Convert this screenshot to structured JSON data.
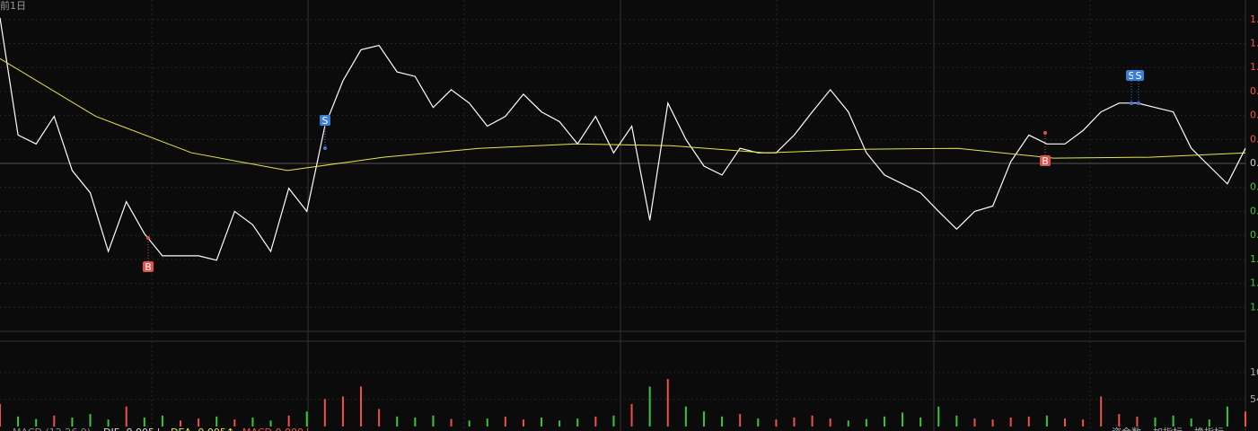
{
  "header": {
    "period": "前1日"
  },
  "chart_data": {
    "type": "line",
    "series": [
      {
        "name": "price",
        "color": "#ffffff",
        "values": [
          1.64,
          0.32,
          0.22,
          0.53,
          -0.08,
          -0.33,
          -0.99,
          -0.43,
          -0.79,
          -1.04,
          -1.04,
          -1.04,
          -1.09,
          -0.54,
          -0.69,
          -0.99,
          -0.28,
          -0.54,
          0.42,
          0.93,
          1.28,
          1.33,
          1.03,
          0.98,
          0.63,
          0.83,
          0.68,
          0.42,
          0.53,
          0.78,
          0.58,
          0.47,
          0.22,
          0.53,
          0.12,
          0.42,
          -0.64,
          0.68,
          0.27,
          -0.03,
          -0.13,
          0.17,
          0.12,
          0.12,
          0.32,
          0.58,
          0.83,
          0.58,
          0.12,
          -0.13,
          -0.23,
          -0.33,
          -0.54,
          -0.74,
          -0.54,
          -0.48,
          0.02,
          0.32,
          0.22,
          0.22,
          0.37,
          0.58,
          0.68,
          0.68,
          0.63,
          0.58,
          0.17,
          -0.03,
          -0.23,
          0.17
        ]
      },
      {
        "name": "average",
        "color": "#e6e64c",
        "values": [
          1.18,
          0.53,
          0.12,
          -0.08,
          0.07,
          0.17,
          0.22,
          0.2,
          0.12,
          0.16,
          0.17,
          0.06,
          0.07,
          0.12
        ]
      }
    ],
    "ylim": [
      -1.88,
      1.84
    ],
    "yticks": [
      {
        "value": 1.62,
        "label": "1."
      },
      {
        "value": 1.35,
        "label": "1."
      },
      {
        "value": 1.08,
        "label": "1."
      },
      {
        "value": 0.81,
        "label": "0."
      },
      {
        "value": 0.54,
        "label": "0."
      },
      {
        "value": 0.27,
        "label": "0."
      },
      {
        "value": 0,
        "label": "0."
      },
      {
        "value": -0.27,
        "label": "0."
      },
      {
        "value": -0.54,
        "label": "0."
      },
      {
        "value": -0.81,
        "label": "0."
      },
      {
        "value": -1.08,
        "label": "1."
      },
      {
        "value": -1.35,
        "label": "1."
      },
      {
        "value": -1.62,
        "label": "1."
      }
    ],
    "markers": [
      "B",
      "S",
      "B",
      "S",
      "S"
    ],
    "up_color": "#f0504a",
    "down_color": "#3cc43c",
    "volume": {
      "values": [
        45,
        20,
        15,
        22,
        18,
        25,
        14,
        40,
        18,
        22,
        12,
        16,
        20,
        14,
        18,
        12,
        22,
        30,
        55,
        60,
        80,
        35,
        20,
        18,
        22,
        15,
        12,
        16,
        20,
        14,
        18,
        12,
        16,
        20,
        22,
        45,
        80,
        95,
        40,
        30,
        20,
        25,
        16,
        14,
        18,
        22,
        16,
        12,
        15,
        20,
        28,
        18,
        40,
        22,
        16,
        14,
        18,
        20,
        22,
        16,
        14,
        60,
        25,
        20,
        18,
        22,
        16,
        14,
        40,
        30
      ],
      "ylim": [
        0,
        167
      ],
      "yticks": [
        {
          "value": 108,
          "label": "10"
        },
        54
      ]
    },
    "macd": {
      "label": "MACD (12,26,9)",
      "dif": "DIF -0.005↓",
      "dea": "DEA -0.005↑",
      "value": "MACD 0.000↓"
    },
    "toolbar": [
      "资金数",
      "加指标",
      "换指标"
    ]
  }
}
